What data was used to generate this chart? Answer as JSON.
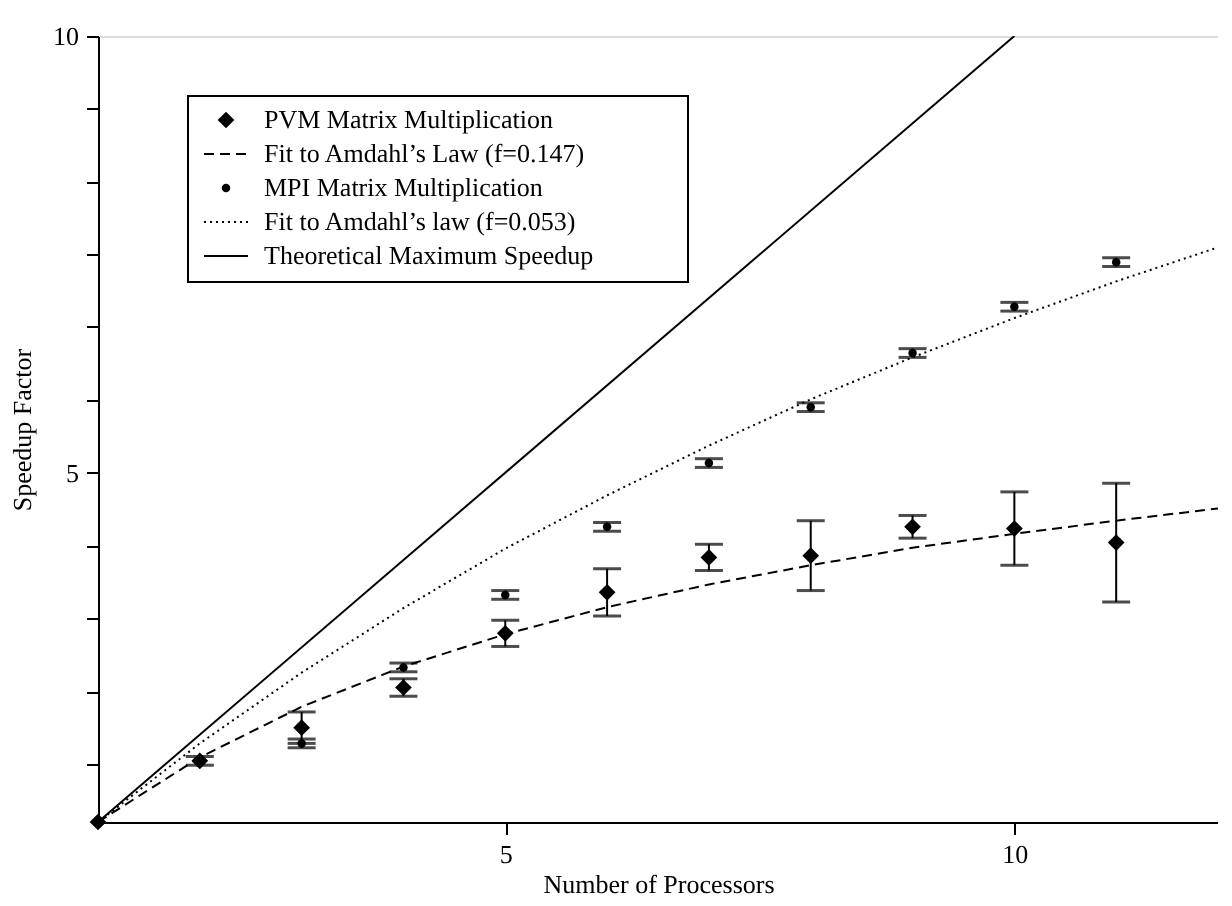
{
  "chart_data": {
    "type": "scatter",
    "xlabel": "Number of Processors",
    "ylabel": "Speedup Factor",
    "xlim": [
      1,
      12
    ],
    "ylim": [
      1,
      10
    ],
    "xticks": [
      5,
      10
    ],
    "yticks": [
      {
        "value": 1.67,
        "label": null
      },
      {
        "value": 2.5,
        "label": null
      },
      {
        "value": 3.33,
        "label": null
      },
      {
        "value": 4.17,
        "label": null
      },
      5,
      {
        "value": 5.83,
        "label": null
      },
      {
        "value": 6.67,
        "label": null
      },
      {
        "value": 7.5,
        "label": null
      },
      {
        "value": 8.33,
        "label": null
      },
      {
        "value": 9.17,
        "label": null
      },
      10
    ],
    "grid": false,
    "legend": "top left",
    "series": [
      {
        "name": "PVM Matrix Multiplication",
        "marker": "diamond",
        "color": "#000000",
        "x": [
          1,
          2,
          3,
          4,
          5,
          6,
          7,
          8,
          9,
          10,
          11
        ],
        "values": [
          1,
          1.7,
          2.08,
          2.54,
          3.16,
          3.63,
          4.03,
          4.05,
          4.38,
          4.36,
          4.2
        ],
        "errors": [
          null,
          0.05,
          0.18,
          0.1,
          0.15,
          0.27,
          0.15,
          0.4,
          0.13,
          0.42,
          0.68
        ]
      },
      {
        "name": "Fit to Amdahl’s Law (f=0.147)",
        "type": "line",
        "line_style": "dashed",
        "color": "#000000",
        "x": [
          1,
          2,
          3,
          4,
          5,
          6,
          7,
          8,
          9,
          10,
          11,
          12
        ],
        "values": [
          1,
          1.74,
          2.32,
          2.78,
          3.15,
          3.46,
          3.72,
          3.94,
          4.14,
          4.3,
          4.45,
          4.59
        ]
      },
      {
        "name": "MPI Matrix Multiplication",
        "marker": "circle",
        "color": "#000000",
        "x": [
          3,
          4,
          5,
          6,
          7,
          8,
          9,
          10,
          11
        ],
        "values": [
          1.9,
          2.77,
          3.6,
          4.38,
          5.11,
          5.75,
          6.37,
          6.9,
          7.41
        ],
        "errors": [
          0.05,
          0.05,
          0.05,
          0.05,
          0.05,
          0.05,
          0.05,
          0.05,
          0.05
        ]
      },
      {
        "name": "Fit to Amdahl’s law (f=0.053)",
        "type": "line",
        "line_style": "dotted",
        "color": "#000000",
        "x": [
          1,
          2,
          3,
          4,
          5,
          6,
          7,
          8,
          9,
          10,
          11,
          12
        ],
        "values": [
          1,
          1.9,
          2.71,
          3.45,
          4.13,
          4.74,
          5.31,
          5.84,
          6.32,
          6.77,
          7.19,
          7.58
        ]
      },
      {
        "name": "Theoretical Maximum Speedup",
        "type": "line",
        "line_style": "solid",
        "color": "#000000",
        "x": [
          1,
          10
        ],
        "values": [
          1,
          10
        ]
      }
    ]
  }
}
